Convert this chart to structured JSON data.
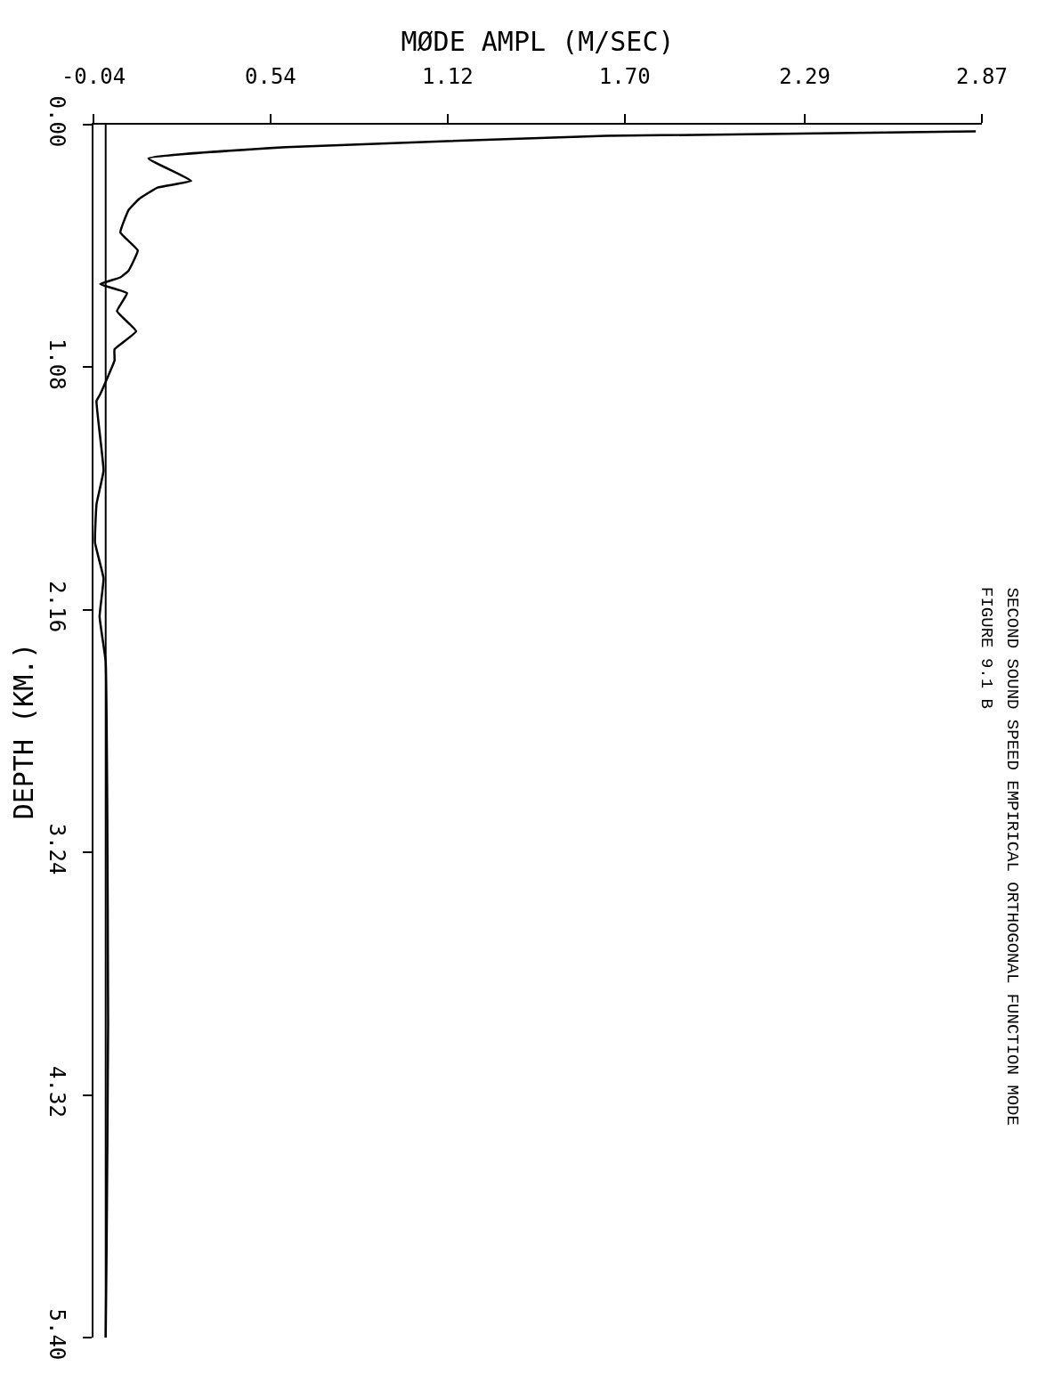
{
  "chart_data": {
    "type": "line",
    "xlabel": "MØDE AMPL (M/SEC)",
    "ylabel": "DEPTH (KM.)",
    "annotations": [
      "FIGURE 9.1 B",
      "SECOND SOUND SPEED EMPIRICAL ORTHOGONAL FUNCTION MODE"
    ],
    "series": [
      {
        "color": "#000000",
        "x": [
          2.85,
          1.64,
          0.59,
          0.14,
          0.28,
          0.17,
          0.11,
          0.075,
          0.048,
          0.105,
          0.075,
          0.048,
          -0.018,
          0.07,
          0.037,
          0.1,
          0.029,
          0.029,
          -0.018,
          -0.03,
          -0.007,
          -0.03,
          -0.035,
          -0.007,
          -0.02,
          0.0,
          0.005,
          0.008,
          0.003,
          0.0
        ],
        "values": [
          0.03,
          0.05,
          0.1,
          0.15,
          0.25,
          0.28,
          0.33,
          0.38,
          0.48,
          0.56,
          0.65,
          0.68,
          0.71,
          0.75,
          0.83,
          0.92,
          1.0,
          1.05,
          1.2,
          1.23,
          1.54,
          1.69,
          1.86,
          2.02,
          2.19,
          2.39,
          3.0,
          4.0,
          5.0,
          5.4
        ]
      }
    ],
    "xlim": [
      -0.04,
      2.87
    ],
    "xticks": [
      -0.04,
      0.54,
      1.12,
      {
        "value": 1.7,
        "label": "1.70"
      },
      2.29,
      2.87
    ],
    "ylim": [
      5.4,
      0.0
    ],
    "yticks": [
      {
        "value": 0,
        "label": "0.00"
      },
      1.08,
      2.16,
      3.24,
      4.32,
      {
        "value": 5.4,
        "label": "5.40"
      }
    ],
    "ref_lines": [
      {
        "axis": "x",
        "value": 0,
        "color": "#000000"
      }
    ],
    "legend": false,
    "marker": "none",
    "line_style": "solid"
  }
}
